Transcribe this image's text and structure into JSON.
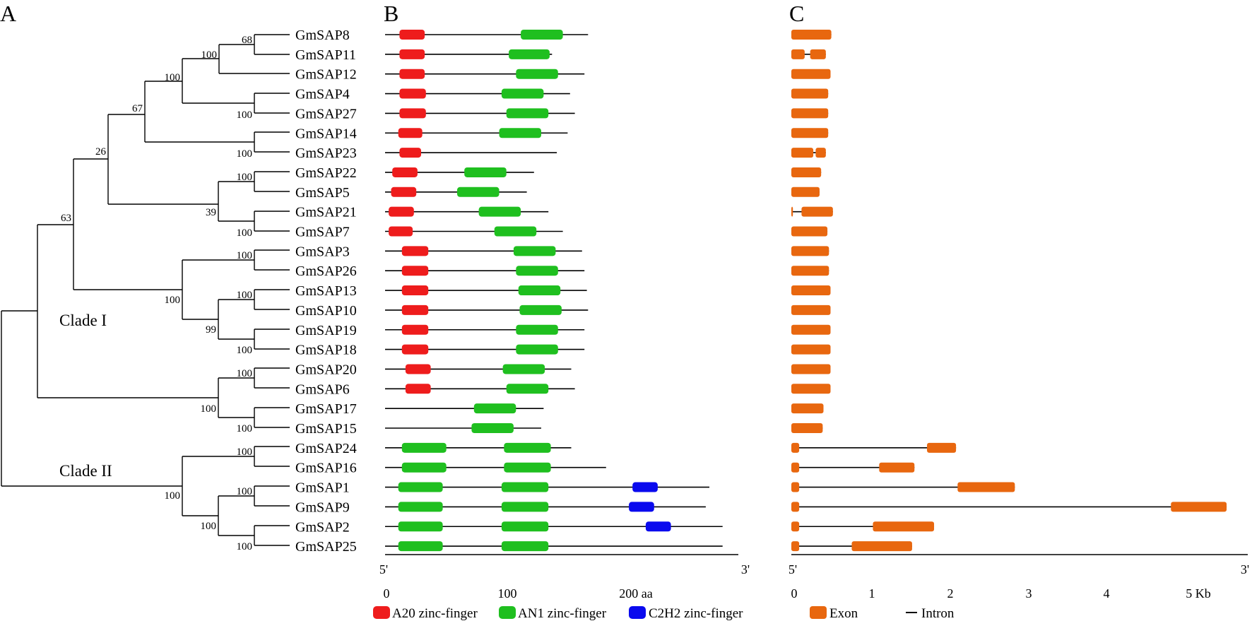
{
  "panels": {
    "a": "A",
    "b": "B",
    "c": "C"
  },
  "genes": [
    "GmSAP8",
    "GmSAP11",
    "GmSAP12",
    "GmSAP4",
    "GmSAP27",
    "GmSAP14",
    "GmSAP23",
    "GmSAP22",
    "GmSAP5",
    "GmSAP21",
    "GmSAP7",
    "GmSAP3",
    "GmSAP26",
    "GmSAP13",
    "GmSAP10",
    "GmSAP19",
    "GmSAP18",
    "GmSAP20",
    "GmSAP6",
    "GmSAP17",
    "GmSAP15",
    "GmSAP24",
    "GmSAP16",
    "GmSAP1",
    "GmSAP9",
    "GmSAP2",
    "GmSAP25"
  ],
  "clades": [
    "Clade I",
    "Clade II"
  ],
  "bootstrap": {
    "n68": "68",
    "n100a": "100",
    "n100b": "100",
    "n67": "67",
    "n100c": "100",
    "n100d": "100",
    "n26": "26",
    "n100e": "100",
    "n39": "39",
    "n100f": "100",
    "n63": "63",
    "n100g": "100",
    "n100h": "100",
    "n100i": "100",
    "n99": "99",
    "n100j": "100",
    "n100k": "100",
    "n100l": "100",
    "n100m": "100",
    "n100n": "100",
    "n100o": "100",
    "n100p": "100",
    "n100q": "100"
  },
  "protein_axis": {
    "start": "5'",
    "end": "3'",
    "ticks": [
      "0",
      "100",
      "200 aa"
    ]
  },
  "gene_axis": {
    "start": "5'",
    "end": "3'",
    "ticks": [
      "0",
      "1",
      "2",
      "3",
      "4",
      "5 Kb"
    ]
  },
  "legend": {
    "a20": "A20 zinc-finger",
    "an1": "AN1 zinc-finger",
    "c2h2": "C2H2 zinc-finger",
    "exon": "Exon",
    "intron": "Intron"
  },
  "colors": {
    "a20": "#ee1c1c",
    "an1": "#1fbf1f",
    "c2h2": "#0a0aee",
    "exon": "#e8670f",
    "line": "#000000"
  },
  "protein_structures": [
    {
      "gene": "GmSAP8",
      "length_aa": 169,
      "domains": [
        {
          "type": "a20",
          "start": 12,
          "end": 33
        },
        {
          "type": "an1",
          "start": 113,
          "end": 148
        }
      ]
    },
    {
      "gene": "GmSAP11",
      "length_aa": 139,
      "domains": [
        {
          "type": "a20",
          "start": 12,
          "end": 33
        },
        {
          "type": "an1",
          "start": 103,
          "end": 137
        }
      ]
    },
    {
      "gene": "GmSAP12",
      "length_aa": 166,
      "domains": [
        {
          "type": "a20",
          "start": 12,
          "end": 33
        },
        {
          "type": "an1",
          "start": 109,
          "end": 144
        }
      ]
    },
    {
      "gene": "GmSAP4",
      "length_aa": 154,
      "domains": [
        {
          "type": "a20",
          "start": 12,
          "end": 34
        },
        {
          "type": "an1",
          "start": 97,
          "end": 132
        }
      ]
    },
    {
      "gene": "GmSAP27",
      "length_aa": 158,
      "domains": [
        {
          "type": "a20",
          "start": 12,
          "end": 34
        },
        {
          "type": "an1",
          "start": 101,
          "end": 136
        }
      ]
    },
    {
      "gene": "GmSAP14",
      "length_aa": 152,
      "domains": [
        {
          "type": "a20",
          "start": 11,
          "end": 31
        },
        {
          "type": "an1",
          "start": 95,
          "end": 130
        }
      ]
    },
    {
      "gene": "GmSAP23",
      "length_aa": 143,
      "domains": [
        {
          "type": "a20",
          "start": 12,
          "end": 30
        }
      ]
    },
    {
      "gene": "GmSAP22",
      "length_aa": 124,
      "domains": [
        {
          "type": "a20",
          "start": 6,
          "end": 27
        },
        {
          "type": "an1",
          "start": 66,
          "end": 101
        }
      ]
    },
    {
      "gene": "GmSAP5",
      "length_aa": 118,
      "domains": [
        {
          "type": "a20",
          "start": 5,
          "end": 26
        },
        {
          "type": "an1",
          "start": 60,
          "end": 95
        }
      ]
    },
    {
      "gene": "GmSAP21",
      "length_aa": 136,
      "domains": [
        {
          "type": "a20",
          "start": 3,
          "end": 24
        },
        {
          "type": "an1",
          "start": 78,
          "end": 113
        }
      ]
    },
    {
      "gene": "GmSAP7",
      "length_aa": 148,
      "domains": [
        {
          "type": "a20",
          "start": 3,
          "end": 23
        },
        {
          "type": "an1",
          "start": 91,
          "end": 126
        }
      ]
    },
    {
      "gene": "GmSAP3",
      "length_aa": 164,
      "domains": [
        {
          "type": "a20",
          "start": 14,
          "end": 36
        },
        {
          "type": "an1",
          "start": 107,
          "end": 142
        }
      ]
    },
    {
      "gene": "GmSAP26",
      "length_aa": 166,
      "domains": [
        {
          "type": "a20",
          "start": 14,
          "end": 36
        },
        {
          "type": "an1",
          "start": 109,
          "end": 144
        }
      ]
    },
    {
      "gene": "GmSAP13",
      "length_aa": 168,
      "domains": [
        {
          "type": "a20",
          "start": 14,
          "end": 36
        },
        {
          "type": "an1",
          "start": 111,
          "end": 146
        }
      ]
    },
    {
      "gene": "GmSAP10",
      "length_aa": 169,
      "domains": [
        {
          "type": "a20",
          "start": 14,
          "end": 36
        },
        {
          "type": "an1",
          "start": 112,
          "end": 147
        }
      ]
    },
    {
      "gene": "GmSAP19",
      "length_aa": 166,
      "domains": [
        {
          "type": "a20",
          "start": 14,
          "end": 36
        },
        {
          "type": "an1",
          "start": 109,
          "end": 144
        }
      ]
    },
    {
      "gene": "GmSAP18",
      "length_aa": 166,
      "domains": [
        {
          "type": "a20",
          "start": 14,
          "end": 36
        },
        {
          "type": "an1",
          "start": 109,
          "end": 144
        }
      ]
    },
    {
      "gene": "GmSAP20",
      "length_aa": 155,
      "domains": [
        {
          "type": "a20",
          "start": 17,
          "end": 38
        },
        {
          "type": "an1",
          "start": 98,
          "end": 133
        }
      ]
    },
    {
      "gene": "GmSAP6",
      "length_aa": 158,
      "domains": [
        {
          "type": "a20",
          "start": 17,
          "end": 38
        },
        {
          "type": "an1",
          "start": 101,
          "end": 136
        }
      ]
    },
    {
      "gene": "GmSAP17",
      "length_aa": 132,
      "domains": [
        {
          "type": "an1",
          "start": 74,
          "end": 109
        }
      ]
    },
    {
      "gene": "GmSAP15",
      "length_aa": 130,
      "domains": [
        {
          "type": "an1",
          "start": 72,
          "end": 107
        }
      ]
    },
    {
      "gene": "GmSAP24",
      "length_aa": 155,
      "domains": [
        {
          "type": "an1",
          "start": 14,
          "end": 51
        },
        {
          "type": "an1",
          "start": 99,
          "end": 138
        }
      ]
    },
    {
      "gene": "GmSAP16",
      "length_aa": 184,
      "domains": [
        {
          "type": "an1",
          "start": 14,
          "end": 51
        },
        {
          "type": "an1",
          "start": 99,
          "end": 138
        }
      ]
    },
    {
      "gene": "GmSAP1",
      "length_aa": 270,
      "domains": [
        {
          "type": "an1",
          "start": 11,
          "end": 48
        },
        {
          "type": "an1",
          "start": 97,
          "end": 136
        },
        {
          "type": "c2h2",
          "start": 206,
          "end": 227
        }
      ]
    },
    {
      "gene": "GmSAP9",
      "length_aa": 267,
      "domains": [
        {
          "type": "an1",
          "start": 11,
          "end": 48
        },
        {
          "type": "an1",
          "start": 97,
          "end": 136
        },
        {
          "type": "c2h2",
          "start": 203,
          "end": 224
        }
      ]
    },
    {
      "gene": "GmSAP2",
      "length_aa": 281,
      "domains": [
        {
          "type": "an1",
          "start": 11,
          "end": 48
        },
        {
          "type": "an1",
          "start": 97,
          "end": 136
        },
        {
          "type": "c2h2",
          "start": 217,
          "end": 238
        }
      ]
    },
    {
      "gene": "GmSAP25",
      "length_aa": 281,
      "domains": [
        {
          "type": "an1",
          "start": 11,
          "end": 48
        },
        {
          "type": "an1",
          "start": 97,
          "end": 136
        }
      ]
    }
  ],
  "gene_structures": [
    {
      "gene": "GmSAP8",
      "length_kb": 0.51,
      "exons": [
        [
          0,
          0.51
        ]
      ]
    },
    {
      "gene": "GmSAP11",
      "length_kb": 0.44,
      "exons": [
        [
          0,
          0.17
        ],
        [
          0.24,
          0.44
        ]
      ]
    },
    {
      "gene": "GmSAP12",
      "length_kb": 0.5,
      "exons": [
        [
          0,
          0.5
        ]
      ]
    },
    {
      "gene": "GmSAP4",
      "length_kb": 0.47,
      "exons": [
        [
          0,
          0.47
        ]
      ]
    },
    {
      "gene": "GmSAP27",
      "length_kb": 0.47,
      "exons": [
        [
          0,
          0.47
        ]
      ]
    },
    {
      "gene": "GmSAP14",
      "length_kb": 0.47,
      "exons": [
        [
          0,
          0.47
        ]
      ]
    },
    {
      "gene": "GmSAP23",
      "length_kb": 0.44,
      "exons": [
        [
          0,
          0.28
        ],
        [
          0.31,
          0.44
        ]
      ]
    },
    {
      "gene": "GmSAP22",
      "length_kb": 0.38,
      "exons": [
        [
          0,
          0.38
        ]
      ]
    },
    {
      "gene": "GmSAP5",
      "length_kb": 0.36,
      "exons": [
        [
          0,
          0.36
        ]
      ]
    },
    {
      "gene": "GmSAP21",
      "length_kb": 0.53,
      "exons": [
        [
          0,
          0.02
        ],
        [
          0.13,
          0.53
        ]
      ]
    },
    {
      "gene": "GmSAP7",
      "length_kb": 0.46,
      "exons": [
        [
          0,
          0.46
        ]
      ]
    },
    {
      "gene": "GmSAP3",
      "length_kb": 0.48,
      "exons": [
        [
          0,
          0.48
        ]
      ]
    },
    {
      "gene": "GmSAP26",
      "length_kb": 0.48,
      "exons": [
        [
          0,
          0.48
        ]
      ]
    },
    {
      "gene": "GmSAP13",
      "length_kb": 0.5,
      "exons": [
        [
          0,
          0.5
        ]
      ]
    },
    {
      "gene": "GmSAP10",
      "length_kb": 0.5,
      "exons": [
        [
          0,
          0.5
        ]
      ]
    },
    {
      "gene": "GmSAP19",
      "length_kb": 0.5,
      "exons": [
        [
          0,
          0.5
        ]
      ]
    },
    {
      "gene": "GmSAP18",
      "length_kb": 0.5,
      "exons": [
        [
          0,
          0.5
        ]
      ]
    },
    {
      "gene": "GmSAP20",
      "length_kb": 0.5,
      "exons": [
        [
          0,
          0.5
        ]
      ]
    },
    {
      "gene": "GmSAP6",
      "length_kb": 0.5,
      "exons": [
        [
          0,
          0.5
        ]
      ]
    },
    {
      "gene": "GmSAP17",
      "length_kb": 0.41,
      "exons": [
        [
          0,
          0.41
        ]
      ]
    },
    {
      "gene": "GmSAP15",
      "length_kb": 0.4,
      "exons": [
        [
          0,
          0.4
        ]
      ]
    },
    {
      "gene": "GmSAP24",
      "length_kb": 2.1,
      "exons": [
        [
          0,
          0.1
        ],
        [
          1.73,
          2.1
        ]
      ]
    },
    {
      "gene": "GmSAP16",
      "length_kb": 1.57,
      "exons": [
        [
          0,
          0.1
        ],
        [
          1.12,
          1.57
        ]
      ]
    },
    {
      "gene": "GmSAP1",
      "length_kb": 2.85,
      "exons": [
        [
          0,
          0.1
        ],
        [
          2.12,
          2.85
        ]
      ]
    },
    {
      "gene": "GmSAP9",
      "length_kb": 5.55,
      "exons": [
        [
          0,
          0.1
        ],
        [
          4.84,
          5.55
        ]
      ]
    },
    {
      "gene": "GmSAP2",
      "length_kb": 1.82,
      "exons": [
        [
          0,
          0.1
        ],
        [
          1.04,
          1.82
        ]
      ]
    },
    {
      "gene": "GmSAP25",
      "length_kb": 1.54,
      "exons": [
        [
          0,
          0.1
        ],
        [
          0.77,
          1.54
        ]
      ]
    }
  ]
}
